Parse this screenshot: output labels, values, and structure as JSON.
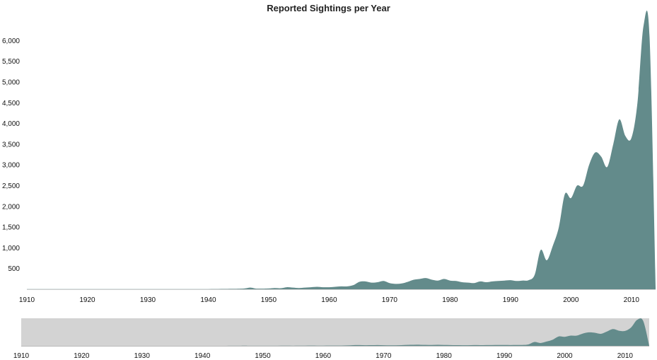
{
  "chart_data": {
    "type": "area",
    "title": "Reported Sightings per Year",
    "xlabel": "",
    "ylabel": "",
    "xlim": [
      1910,
      2014
    ],
    "ylim": [
      0,
      6400
    ],
    "grid": false,
    "legend": "none",
    "y_ticks": [
      500,
      1000,
      1500,
      2000,
      2500,
      3000,
      3500,
      4000,
      4500,
      5000,
      5500,
      6000
    ],
    "y_tick_labels": [
      "500",
      "1,000",
      "1,500",
      "2,000",
      "2,500",
      "3,000",
      "3,500",
      "4,000",
      "4,500",
      "5,000",
      "5,500",
      "6,000"
    ],
    "x_ticks": [
      1910,
      1920,
      1930,
      1940,
      1950,
      1960,
      1970,
      1980,
      1990,
      2000,
      2010
    ],
    "x_tick_labels": [
      "1910",
      "1920",
      "1930",
      "1940",
      "1950",
      "1960",
      "1970",
      "1980",
      "1990",
      "2000",
      "2010"
    ],
    "series": [
      {
        "color": "#638b8b",
        "x": [
          1910,
          1915,
          1920,
          1925,
          1930,
          1935,
          1940,
          1944,
          1946,
          1947,
          1948,
          1950,
          1951,
          1952,
          1953,
          1954,
          1955,
          1956,
          1957,
          1958,
          1959,
          1960,
          1961,
          1962,
          1963,
          1964,
          1965,
          1966,
          1967,
          1968,
          1969,
          1970,
          1971,
          1972,
          1973,
          1974,
          1975,
          1976,
          1977,
          1978,
          1979,
          1980,
          1981,
          1982,
          1983,
          1984,
          1985,
          1986,
          1987,
          1988,
          1989,
          1990,
          1991,
          1992,
          1993,
          1994,
          1995,
          1996,
          1997,
          1998,
          1999,
          2000,
          2001,
          2002,
          2003,
          2004,
          2005,
          2006,
          2007,
          2008,
          2009,
          2010,
          2011,
          2012,
          2013,
          2014
        ],
        "values": [
          5,
          5,
          5,
          5,
          5,
          5,
          5,
          10,
          20,
          40,
          15,
          20,
          30,
          25,
          50,
          40,
          30,
          40,
          50,
          60,
          50,
          50,
          60,
          70,
          70,
          100,
          180,
          190,
          160,
          170,
          200,
          150,
          130,
          140,
          180,
          230,
          250,
          270,
          230,
          210,
          250,
          210,
          200,
          170,
          160,
          150,
          190,
          170,
          190,
          200,
          210,
          220,
          200,
          210,
          220,
          350,
          950,
          700,
          1050,
          1500,
          2300,
          2200,
          2500,
          2500,
          3000,
          3300,
          3200,
          2950,
          3500,
          4100,
          3700,
          3650,
          4500,
          6350,
          6100,
          50
        ]
      }
    ]
  },
  "navigator": {
    "x_tick_labels": [
      "1910",
      "1920",
      "1930",
      "1940",
      "1950",
      "1960",
      "1970",
      "1980",
      "1990",
      "2000",
      "2010"
    ],
    "fill_color": "#638b8b",
    "background_color": "#d3d3d3"
  }
}
